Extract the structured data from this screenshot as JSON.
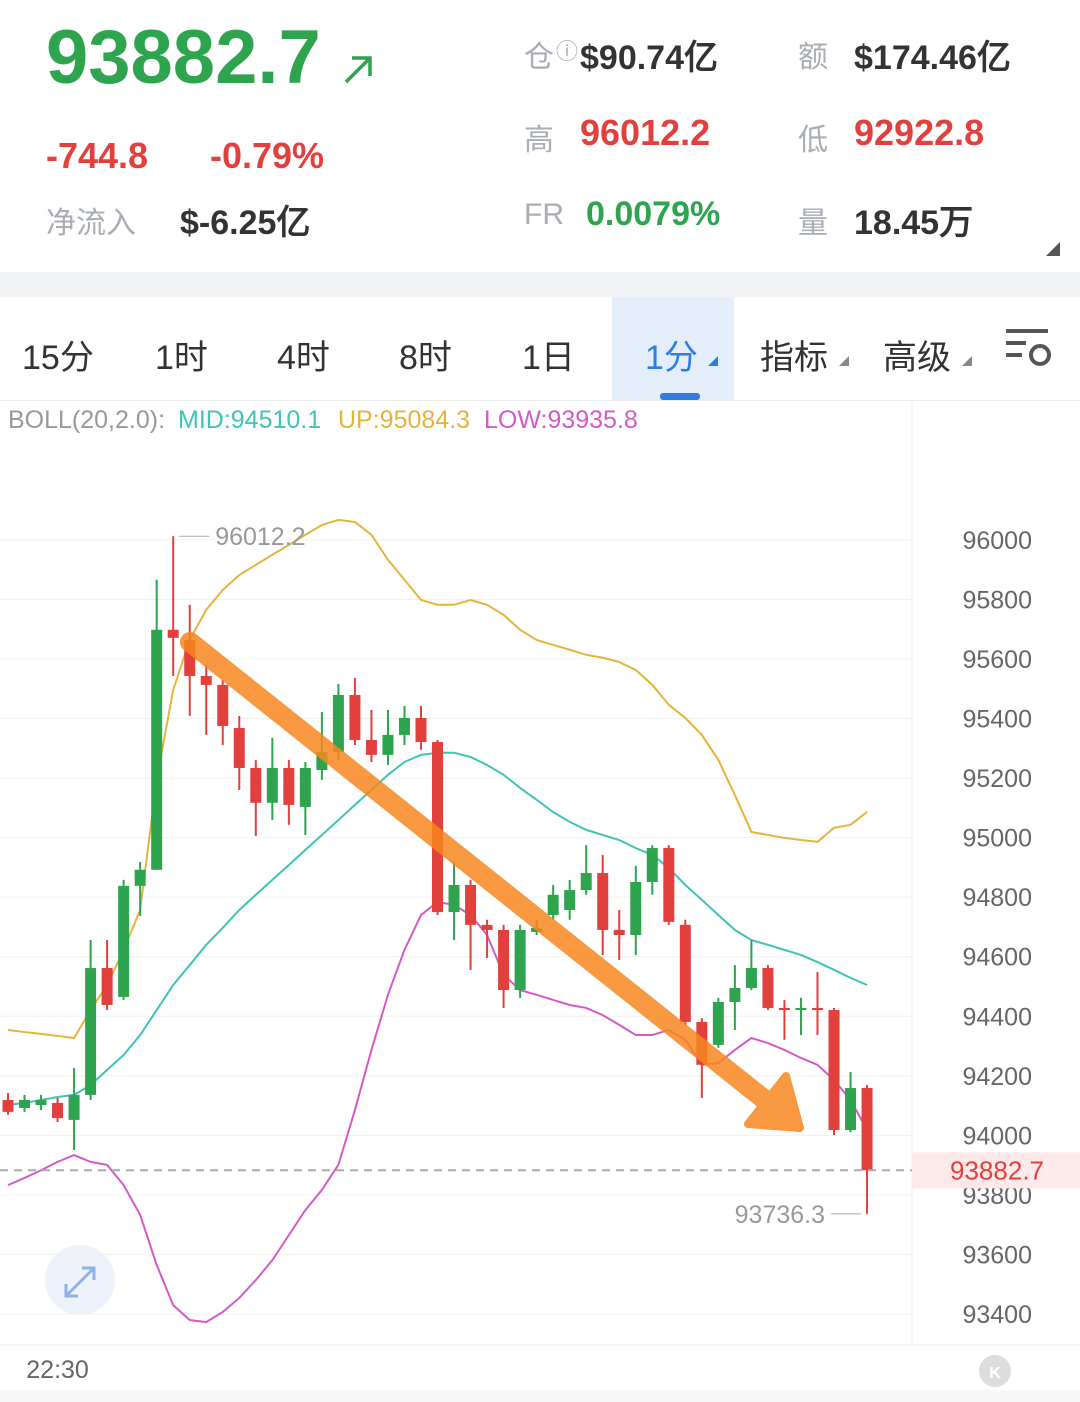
{
  "header": {
    "price": "93882.7",
    "change": "-744.8",
    "change_pct": "-0.79%",
    "inflow_label": "净流入",
    "inflow": "$-6.25亿",
    "stats": [
      {
        "label": "仓",
        "value": "$90.74亿"
      },
      {
        "label": "额",
        "value": "$174.46亿"
      },
      {
        "label": "高",
        "value": "96012.2"
      },
      {
        "label": "低",
        "value": "92922.8"
      },
      {
        "label": "FR",
        "value": "0.0079%"
      },
      {
        "label": "量",
        "value": "18.45万"
      }
    ]
  },
  "tabs": [
    "15分",
    "1时",
    "4时",
    "8时",
    "1日",
    "1分",
    "指标",
    "高级"
  ],
  "indicator": {
    "name": "BOLL(20,2.0):",
    "mid": "MID:94510.1",
    "up": "UP:95084.3",
    "low": "LOW:93935.8"
  },
  "chart_data": {
    "type": "candlestick",
    "up_color": "#2ea44f",
    "down_color": "#e2403d",
    "categories": [
      null,
      null,
      null,
      "22:30",
      null,
      null,
      null,
      null,
      null,
      null,
      null,
      null,
      null,
      null,
      null,
      null,
      null,
      null,
      null,
      null,
      null,
      null,
      null,
      null,
      null,
      null,
      null,
      null,
      null,
      null,
      null,
      null,
      null,
      null,
      null,
      null,
      null,
      null,
      null,
      null,
      null,
      null,
      null,
      null,
      null,
      null,
      null,
      null,
      null,
      null,
      null,
      null,
      null
    ],
    "open": [
      94119,
      94092,
      94102,
      94109,
      94052,
      94136,
      94562,
      94465,
      94838,
      94892,
      95698,
      95664,
      95543,
      95513,
      95368,
      95234,
      95117,
      95234,
      95103,
      95227,
      95288,
      95479,
      95328,
      95278,
      95345,
      95402,
      95321,
      94750,
      94841,
      94707,
      94690,
      94488,
      94683,
      94740,
      94757,
      94824,
      94881,
      94690,
      94673,
      94851,
      94965,
      94707,
      94381,
      94304,
      94448,
      94495,
      94562,
      94428,
      94421,
      94428,
      94421,
      94018,
      94159
    ],
    "high": [
      94142,
      94136,
      94136,
      94126,
      94226,
      94656,
      94656,
      94858,
      94918,
      95866,
      96012.2,
      95782,
      95580,
      95530,
      95409,
      95261,
      95335,
      95261,
      95254,
      95422,
      95516,
      95536,
      95429,
      95429,
      95442,
      95442,
      95328,
      94918,
      94858,
      94724,
      94707,
      94707,
      94724,
      94841,
      94858,
      94975,
      94942,
      94757,
      94905,
      94975,
      94975,
      94724,
      94394,
      94462,
      94572,
      94656,
      94572,
      94455,
      94462,
      94549,
      94428,
      94213,
      94169
    ],
    "low": [
      94069,
      94079,
      94085,
      94045,
      93951,
      94119,
      94421,
      94455,
      94737,
      94892,
      95543,
      95409,
      95345,
      95311,
      95160,
      95006,
      95059,
      95043,
      95009,
      95194,
      95261,
      95311,
      95254,
      95244,
      95311,
      95295,
      94740,
      94656,
      94556,
      94596,
      94428,
      94462,
      94673,
      94724,
      94724,
      94808,
      94606,
      94589,
      94606,
      94808,
      94707,
      94371,
      94126,
      94294,
      94354,
      94488,
      94421,
      94321,
      94337,
      94337,
      94001,
      94011,
      93736.3
    ],
    "close": [
      94079,
      94119,
      94119,
      94058,
      94136,
      94562,
      94438,
      94838,
      94892,
      95698,
      95671,
      95543,
      95513,
      95375,
      95234,
      95117,
      95234,
      95110,
      95234,
      95288,
      95479,
      95328,
      95278,
      95345,
      95402,
      95321,
      94750,
      94841,
      94707,
      94690,
      94488,
      94690,
      94697,
      94808,
      94824,
      94881,
      94690,
      94673,
      94851,
      94965,
      94717,
      94381,
      94237,
      94448,
      94495,
      94562,
      94428,
      94421,
      94428,
      94421,
      94018,
      94159,
      93882.7
    ],
    "series": [
      {
        "color": "#3fc4b5",
        "values": [
          94102,
          94109,
          94119,
          94129,
          94136,
          94169,
          94220,
          94270,
          94337,
          94421,
          94505,
          94572,
          94640,
          94697,
          94757,
          94808,
          94858,
          94908,
          94959,
          95009,
          95059,
          95110,
          95160,
          95211,
          95254,
          95278,
          95285,
          95285,
          95271,
          95244,
          95211,
          95167,
          95127,
          95086,
          95053,
          95026,
          95009,
          94992,
          94965,
          94942,
          94898,
          94841,
          94791,
          94740,
          94690,
          94656,
          94640,
          94623,
          94606,
          94582,
          94556,
          94529,
          94505
        ]
      },
      {
        "color": "#e6b43a",
        "values": [
          94354,
          94347,
          94341,
          94334,
          94327,
          94421,
          94505,
          94623,
          94757,
          95194,
          95496,
          95664,
          95765,
          95832,
          95882,
          95916,
          95950,
          95983,
          96017,
          96050,
          96067,
          96060,
          96017,
          95933,
          95866,
          95798,
          95782,
          95782,
          95798,
          95782,
          95748,
          95698,
          95664,
          95647,
          95631,
          95614,
          95604,
          95590,
          95563,
          95513,
          95446,
          95402,
          95345,
          95261,
          95143,
          95019,
          95009,
          94999,
          94992,
          94986,
          95033,
          95043,
          95086
        ]
      },
      {
        "color": "#d45ac6",
        "values": [
          93833,
          93857,
          93883,
          93911,
          93934,
          93911,
          93901,
          93833,
          93733,
          93565,
          93430,
          93380,
          93373,
          93407,
          93454,
          93514,
          93581,
          93665,
          93749,
          93817,
          93901,
          94085,
          94287,
          94472,
          94623,
          94740,
          94784,
          94774,
          94740,
          94673,
          94539,
          94488,
          94472,
          94455,
          94438,
          94428,
          94404,
          94371,
          94337,
          94337,
          94354,
          94321,
          94237,
          94243,
          94287,
          94327,
          94310,
          94287,
          94260,
          94237,
          94186,
          94119,
          94018
        ]
      }
    ],
    "ylim": [
      93296,
      96369
    ],
    "yticks": [
      93400,
      93600,
      93800,
      94000,
      94200,
      94400,
      94600,
      94800,
      95000,
      95200,
      95400,
      95600,
      95800,
      96000
    ],
    "grid": true
  }
}
